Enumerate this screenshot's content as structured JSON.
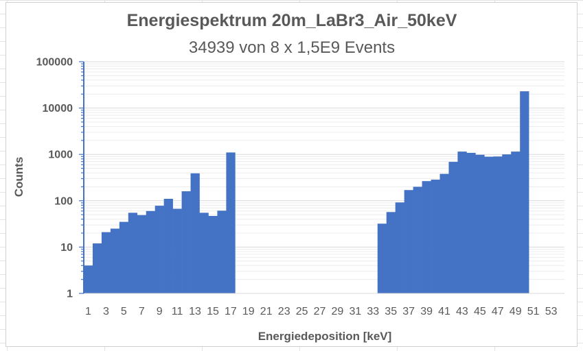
{
  "chart_data": {
    "type": "bar",
    "title": "Energiespektrum 20m_LaBr3_Air_50keV",
    "subtitle": "34939 von 8 x 1,5E9 Events",
    "xlabel": "Energiedeposition [keV]",
    "ylabel": "Counts",
    "yscale": "log",
    "ylim": [
      1,
      100000
    ],
    "yticks": [
      "1",
      "10",
      "100",
      "1000",
      "10000",
      "100000"
    ],
    "grid": true,
    "legend": "none",
    "bar_color": "#4472C4",
    "categories": [
      "1",
      "2",
      "3",
      "4",
      "5",
      "6",
      "7",
      "8",
      "9",
      "10",
      "11",
      "12",
      "13",
      "14",
      "15",
      "16",
      "17",
      "18",
      "19",
      "20",
      "21",
      "22",
      "23",
      "24",
      "25",
      "26",
      "27",
      "28",
      "29",
      "30",
      "31",
      "32",
      "33",
      "34",
      "35",
      "36",
      "37",
      "38",
      "39",
      "40",
      "41",
      "42",
      "43",
      "44",
      "45",
      "46",
      "47",
      "48",
      "49",
      "50",
      "51",
      "52",
      "53",
      "54"
    ],
    "xtick_labels": [
      "1",
      "3",
      "5",
      "7",
      "9",
      "11",
      "13",
      "15",
      "17",
      "19",
      "21",
      "23",
      "25",
      "27",
      "29",
      "31",
      "33",
      "35",
      "37",
      "39",
      "41",
      "43",
      "45",
      "47",
      "49",
      "51",
      "53"
    ],
    "values": [
      4,
      12,
      21,
      25,
      35,
      55,
      49,
      60,
      78,
      110,
      67,
      160,
      390,
      55,
      47,
      61,
      1100,
      0,
      0,
      0,
      0,
      0,
      0,
      0,
      0,
      0,
      0,
      0,
      0,
      0,
      0,
      0,
      0,
      32,
      57,
      92,
      170,
      200,
      265,
      285,
      380,
      690,
      1150,
      1080,
      980,
      890,
      900,
      1000,
      1150,
      23000,
      0,
      0,
      0,
      0
    ]
  }
}
